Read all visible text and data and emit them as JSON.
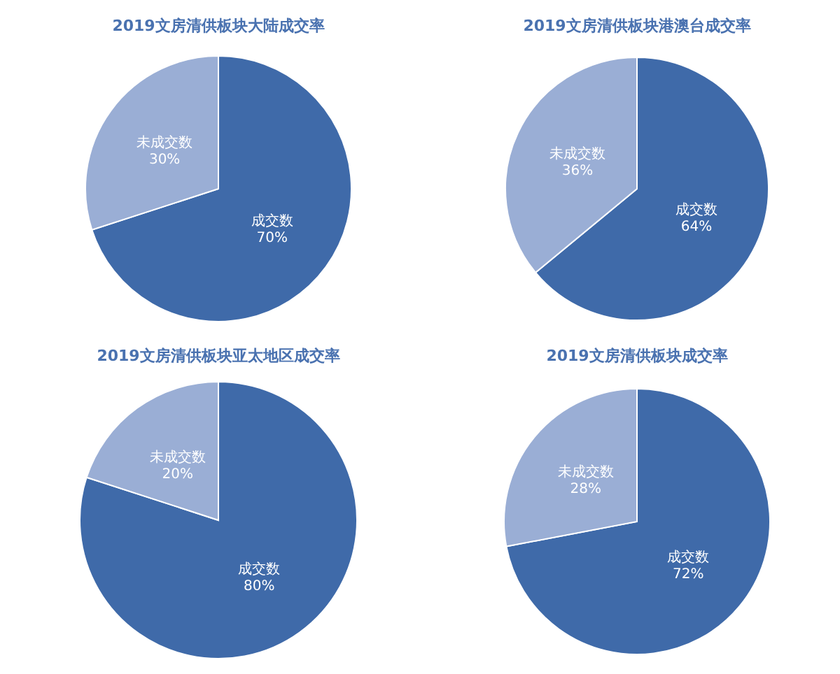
{
  "chart_data": [
    {
      "type": "pie",
      "title": "2019文房清供板块大陆成交率",
      "categories": [
        "成交数",
        "未成交数"
      ],
      "values": [
        70,
        30
      ],
      "value_labels": [
        "70%",
        "30%"
      ],
      "colors": [
        "#3f6aa9",
        "#9aaed5"
      ]
    },
    {
      "type": "pie",
      "title": "2019文房清供板块港澳台成交率",
      "categories": [
        "成交数",
        "未成交数"
      ],
      "values": [
        64,
        36
      ],
      "value_labels": [
        "64%",
        "36%"
      ],
      "colors": [
        "#3f6aa9",
        "#9aaed5"
      ]
    },
    {
      "type": "pie",
      "title": "2019文房清供板块亚太地区成交率",
      "categories": [
        "成交数",
        "未成交数"
      ],
      "values": [
        80,
        20
      ],
      "value_labels": [
        "80%",
        "20%"
      ],
      "colors": [
        "#3f6aa9",
        "#9aaed5"
      ]
    },
    {
      "type": "pie",
      "title": "2019文房清供板块成交率",
      "categories": [
        "成交数",
        "未成交数"
      ],
      "values": [
        72,
        28
      ],
      "value_labels": [
        "72%",
        "28%"
      ],
      "colors": [
        "#3f6aa9",
        "#9aaed5"
      ]
    }
  ]
}
